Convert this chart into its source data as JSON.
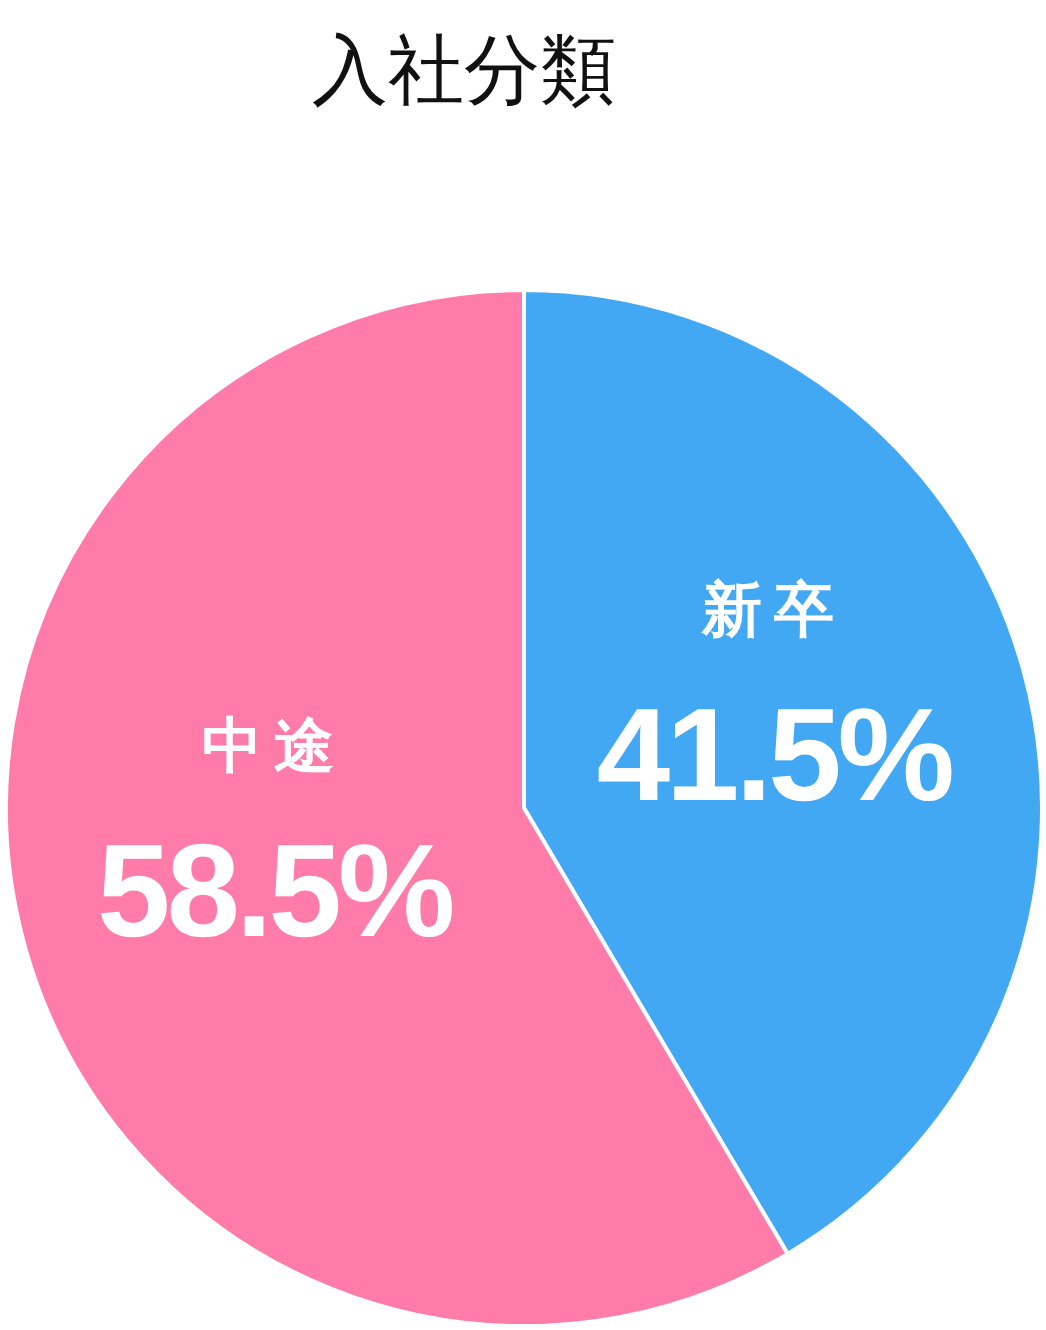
{
  "chart_data": {
    "type": "pie",
    "title": "入社分類",
    "categories": [
      "新卒",
      "中途"
    ],
    "values": [
      41.5,
      58.5
    ],
    "colors": [
      "#42a8f4",
      "#ff7ba8"
    ],
    "value_labels": [
      "41.5%",
      "58.5%"
    ]
  }
}
